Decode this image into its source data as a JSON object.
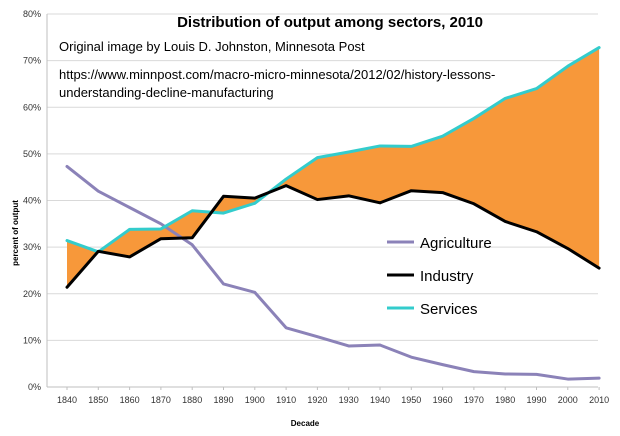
{
  "chart_data": {
    "type": "line",
    "title": "Distribution of output among sectors, 2010",
    "annotations": [
      "Original image by Louis D. Johnston, Minnesota Post",
      "https://www.minnpost.com/macro-micro-minnesota/2012/02/history-lessons-",
      "understanding-decline-manufacturing"
    ],
    "xlabel": "Decade",
    "ylabel": "percent of output",
    "x": [
      1840,
      1850,
      1860,
      1870,
      1880,
      1890,
      1900,
      1910,
      1920,
      1930,
      1940,
      1950,
      1960,
      1970,
      1980,
      1990,
      2000,
      2010
    ],
    "x_tick_labels": [
      "1840",
      "1850",
      "1860",
      "1870",
      "1880",
      "1890",
      "1900",
      "1910",
      "1920",
      "1930",
      "1940",
      "1950",
      "1960",
      "1970",
      "1980",
      "1990",
      "2000",
      "2010"
    ],
    "ylim": [
      0,
      80
    ],
    "y_ticks": [
      0,
      10,
      20,
      30,
      40,
      50,
      60,
      70,
      80
    ],
    "y_tick_labels": [
      "0%",
      "10%",
      "20%",
      "30%",
      "40%",
      "50%",
      "60%",
      "70%",
      "80%"
    ],
    "grid": true,
    "legend_position": "right",
    "series": [
      {
        "name": "Agriculture",
        "color": "#8b82b8",
        "values": [
          47.3,
          42.0,
          38.5,
          35.0,
          30.5,
          22.1,
          20.3,
          12.7,
          10.8,
          8.8,
          9.0,
          6.4,
          4.8,
          3.3,
          2.8,
          2.7,
          1.7,
          1.9
        ]
      },
      {
        "name": "Industry",
        "color": "#000000",
        "values": [
          21.4,
          29.1,
          27.9,
          31.8,
          32.0,
          40.9,
          40.5,
          43.2,
          40.2,
          41.0,
          39.5,
          42.1,
          41.7,
          39.3,
          35.5,
          33.3,
          29.7,
          25.5
        ]
      },
      {
        "name": "Services",
        "color": "#33cccc",
        "values": [
          31.4,
          29.0,
          33.8,
          33.9,
          37.8,
          37.3,
          39.4,
          44.6,
          49.2,
          50.4,
          51.7,
          51.6,
          53.8,
          57.6,
          61.9,
          64.0,
          68.8,
          72.8
        ]
      }
    ],
    "fill_between": {
      "upper": "Services",
      "lower": "Industry",
      "color": "#f7983a"
    }
  }
}
